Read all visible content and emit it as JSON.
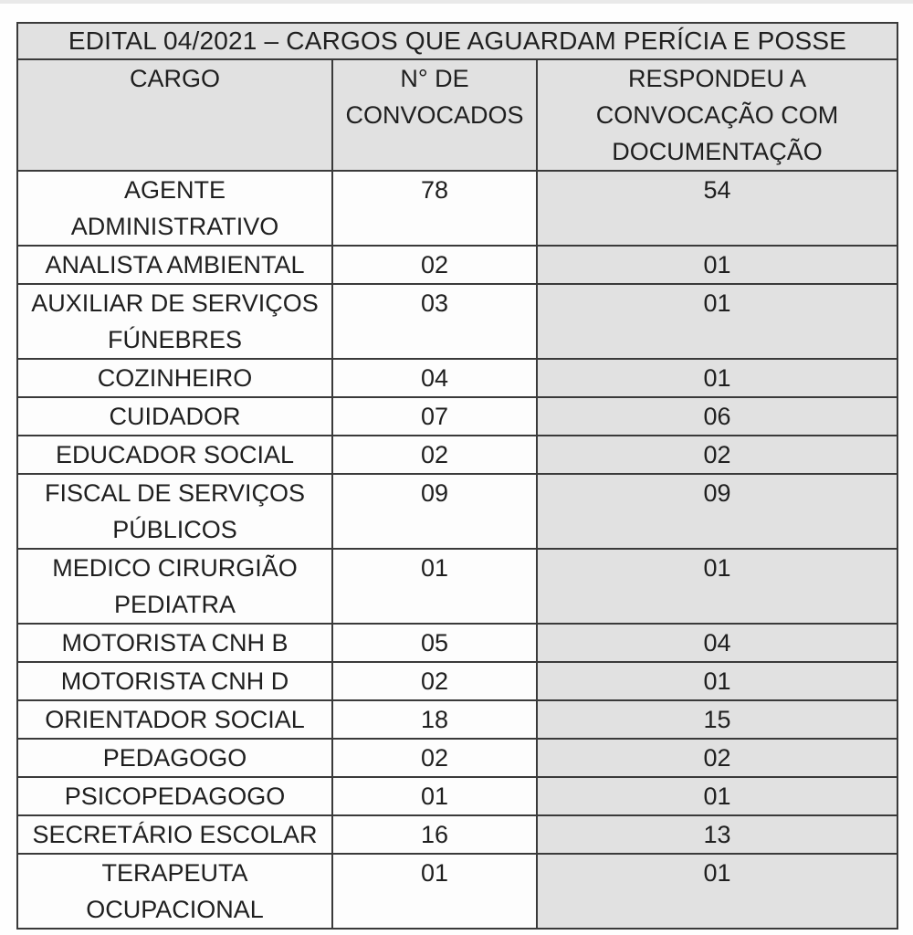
{
  "table": {
    "title": "EDITAL 04/2021 – CARGOS QUE AGUARDAM PERÍCIA E POSSE",
    "columns": [
      "CARGO",
      "N° DE\nCONVOCADOS",
      "RESPONDEU A\nCONVOCAÇÃO COM\nDOCUMENTAÇÃO"
    ],
    "rows": [
      {
        "cargo": "AGENTE\nADMINISTRATIVO",
        "convocados": "78",
        "respondeu": "54"
      },
      {
        "cargo": "ANALISTA AMBIENTAL",
        "convocados": "02",
        "respondeu": "01"
      },
      {
        "cargo": "AUXILIAR DE SERVIÇOS\nFÚNEBRES",
        "convocados": "03",
        "respondeu": "01"
      },
      {
        "cargo": "COZINHEIRO",
        "convocados": "04",
        "respondeu": "01"
      },
      {
        "cargo": "CUIDADOR",
        "convocados": "07",
        "respondeu": "06"
      },
      {
        "cargo": "EDUCADOR SOCIAL",
        "convocados": "02",
        "respondeu": "02"
      },
      {
        "cargo": "FISCAL DE SERVIÇOS\nPÚBLICOS",
        "convocados": "09",
        "respondeu": "09"
      },
      {
        "cargo": "MEDICO CIRURGIÃO\nPEDIATRA",
        "convocados": "01",
        "respondeu": "01"
      },
      {
        "cargo": "MOTORISTA CNH B",
        "convocados": "05",
        "respondeu": "04"
      },
      {
        "cargo": "MOTORISTA CNH D",
        "convocados": "02",
        "respondeu": "01"
      },
      {
        "cargo": "ORIENTADOR SOCIAL",
        "convocados": "18",
        "respondeu": "15"
      },
      {
        "cargo": "PEDAGOGO",
        "convocados": "02",
        "respondeu": "02"
      },
      {
        "cargo": "PSICOPEDAGOGO",
        "convocados": "01",
        "respondeu": "01"
      },
      {
        "cargo": "SECRETÁRIO ESCOLAR",
        "convocados": "16",
        "respondeu": "13"
      },
      {
        "cargo": "TERAPEUTA\nOCUPACIONAL",
        "convocados": "01",
        "respondeu": "01"
      }
    ]
  },
  "colors": {
    "shaded_cell_bg": "#e1e1e1",
    "data_cell_bg": "#fdfdfd",
    "border": "#3a3a3a",
    "text": "#1f1f1f"
  }
}
